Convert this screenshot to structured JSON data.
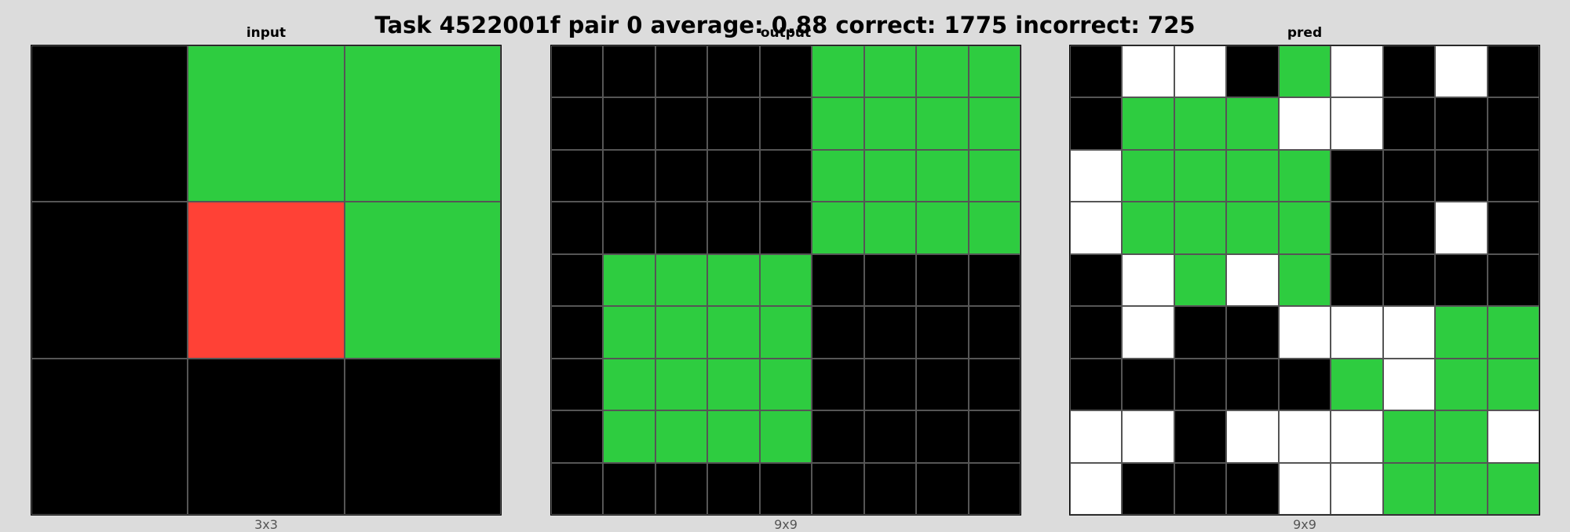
{
  "title": "Task 4522001f pair 0 average: 0.88 correct: 1775 incorrect: 725",
  "palette": {
    "0": "#000000",
    "1": "#ffffff",
    "2": "#ff4136",
    "3": "#2ecc40"
  },
  "panels": [
    {
      "title": "input",
      "size_label": "3x3",
      "grid": [
        [
          0,
          3,
          3
        ],
        [
          0,
          2,
          3
        ],
        [
          0,
          0,
          0
        ]
      ]
    },
    {
      "title": "output",
      "size_label": "9x9",
      "grid": [
        [
          0,
          0,
          0,
          0,
          0,
          3,
          3,
          3,
          3
        ],
        [
          0,
          0,
          0,
          0,
          0,
          3,
          3,
          3,
          3
        ],
        [
          0,
          0,
          0,
          0,
          0,
          3,
          3,
          3,
          3
        ],
        [
          0,
          0,
          0,
          0,
          0,
          3,
          3,
          3,
          3
        ],
        [
          0,
          3,
          3,
          3,
          3,
          0,
          0,
          0,
          0
        ],
        [
          0,
          3,
          3,
          3,
          3,
          0,
          0,
          0,
          0
        ],
        [
          0,
          3,
          3,
          3,
          3,
          0,
          0,
          0,
          0
        ],
        [
          0,
          3,
          3,
          3,
          3,
          0,
          0,
          0,
          0
        ],
        [
          0,
          0,
          0,
          0,
          0,
          0,
          0,
          0,
          0
        ]
      ]
    },
    {
      "title": "pred",
      "size_label": "9x9",
      "grid": [
        [
          0,
          1,
          1,
          0,
          3,
          1,
          0,
          1,
          0
        ],
        [
          0,
          3,
          3,
          3,
          1,
          1,
          0,
          0,
          0
        ],
        [
          1,
          3,
          3,
          3,
          3,
          0,
          0,
          0,
          0
        ],
        [
          1,
          3,
          3,
          3,
          3,
          0,
          0,
          1,
          0
        ],
        [
          0,
          1,
          3,
          1,
          3,
          0,
          0,
          0,
          0
        ],
        [
          0,
          1,
          0,
          0,
          1,
          1,
          1,
          3,
          3
        ],
        [
          0,
          0,
          0,
          0,
          0,
          3,
          1,
          3,
          3
        ],
        [
          1,
          1,
          0,
          1,
          1,
          1,
          3,
          3,
          1
        ],
        [
          1,
          0,
          0,
          0,
          1,
          1,
          3,
          3,
          3
        ]
      ]
    }
  ]
}
